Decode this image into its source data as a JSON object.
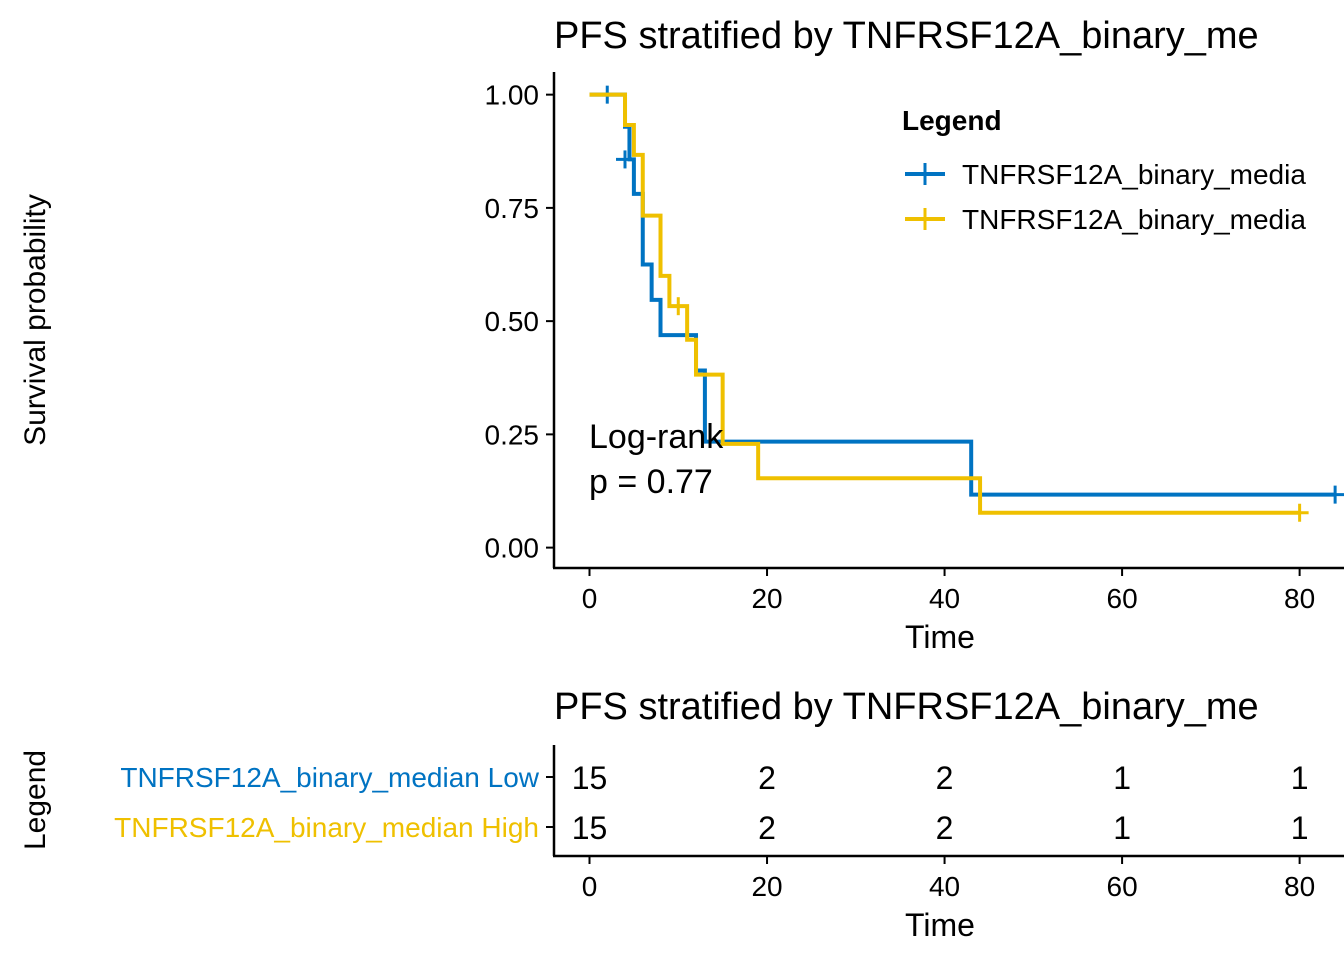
{
  "colors": {
    "low": "#0073C2",
    "high": "#EFC000"
  },
  "chart_data": [
    {
      "type": "line",
      "subtype": "kaplan-meier step",
      "title": "PFS stratified by TNFRSF12A_binary_me",
      "xlabel": "Time",
      "ylabel": "Survival probability",
      "xlim": [
        -4,
        85
      ],
      "ylim": [
        -0.045,
        1.05
      ],
      "xticks": [
        0,
        20,
        40,
        60,
        80
      ],
      "yticks": [
        0.0,
        0.25,
        0.5,
        0.75,
        1.0
      ],
      "ytick_labels": [
        "0.00",
        "0.25",
        "0.50",
        "0.75",
        "1.00"
      ],
      "legend": {
        "title": "Legend",
        "position": "top-right",
        "entries": [
          "TNFRSF12A_binary_media",
          "TNFRSF12A_binary_media"
        ]
      },
      "annotation": {
        "line1": "Log-rank",
        "line2": "p = 0.77"
      },
      "series": [
        {
          "name": "TNFRSF12A_binary_media",
          "color_key": "low",
          "steps": [
            [
              0,
              1.0
            ],
            [
              4,
              0.929
            ],
            [
              4.5,
              0.857
            ],
            [
              5,
              0.781
            ],
            [
              6,
              0.625
            ],
            [
              7,
              0.547
            ],
            [
              8,
              0.469
            ],
            [
              12,
              0.391
            ],
            [
              13,
              0.234
            ],
            [
              43,
              0.117
            ],
            [
              84,
              0.117
            ]
          ],
          "censored": [
            [
              2,
              1.0
            ],
            [
              4,
              0.857
            ],
            [
              84,
              0.117
            ]
          ]
        },
        {
          "name": "TNFRSF12A_binary_media",
          "color_key": "high",
          "steps": [
            [
              0,
              1.0
            ],
            [
              4,
              0.933
            ],
            [
              5,
              0.867
            ],
            [
              6,
              0.733
            ],
            [
              8,
              0.6
            ],
            [
              9,
              0.533
            ],
            [
              11,
              0.459
            ],
            [
              12,
              0.382
            ],
            [
              15,
              0.229
            ],
            [
              19,
              0.153
            ],
            [
              44,
              0.077
            ],
            [
              80,
              0.077
            ]
          ],
          "censored": [
            [
              10,
              0.533
            ],
            [
              80,
              0.077
            ]
          ]
        }
      ]
    },
    {
      "type": "table",
      "title": "PFS stratified by TNFRSF12A_binary_me",
      "xlabel": "Time",
      "ylabel": "Legend",
      "xlim": [
        -4,
        85
      ],
      "xticks": [
        0,
        20,
        40,
        60,
        80
      ],
      "times": [
        0,
        20,
        40,
        60,
        80
      ],
      "rows": [
        {
          "label": "TNFRSF12A_binary_median Low",
          "color_key": "low",
          "values": [
            "15",
            "2",
            "2",
            "1",
            "1"
          ]
        },
        {
          "label": "TNFRSF12A_binary_median High",
          "color_key": "high",
          "values": [
            "15",
            "2",
            "2",
            "1",
            "1"
          ]
        }
      ]
    }
  ]
}
